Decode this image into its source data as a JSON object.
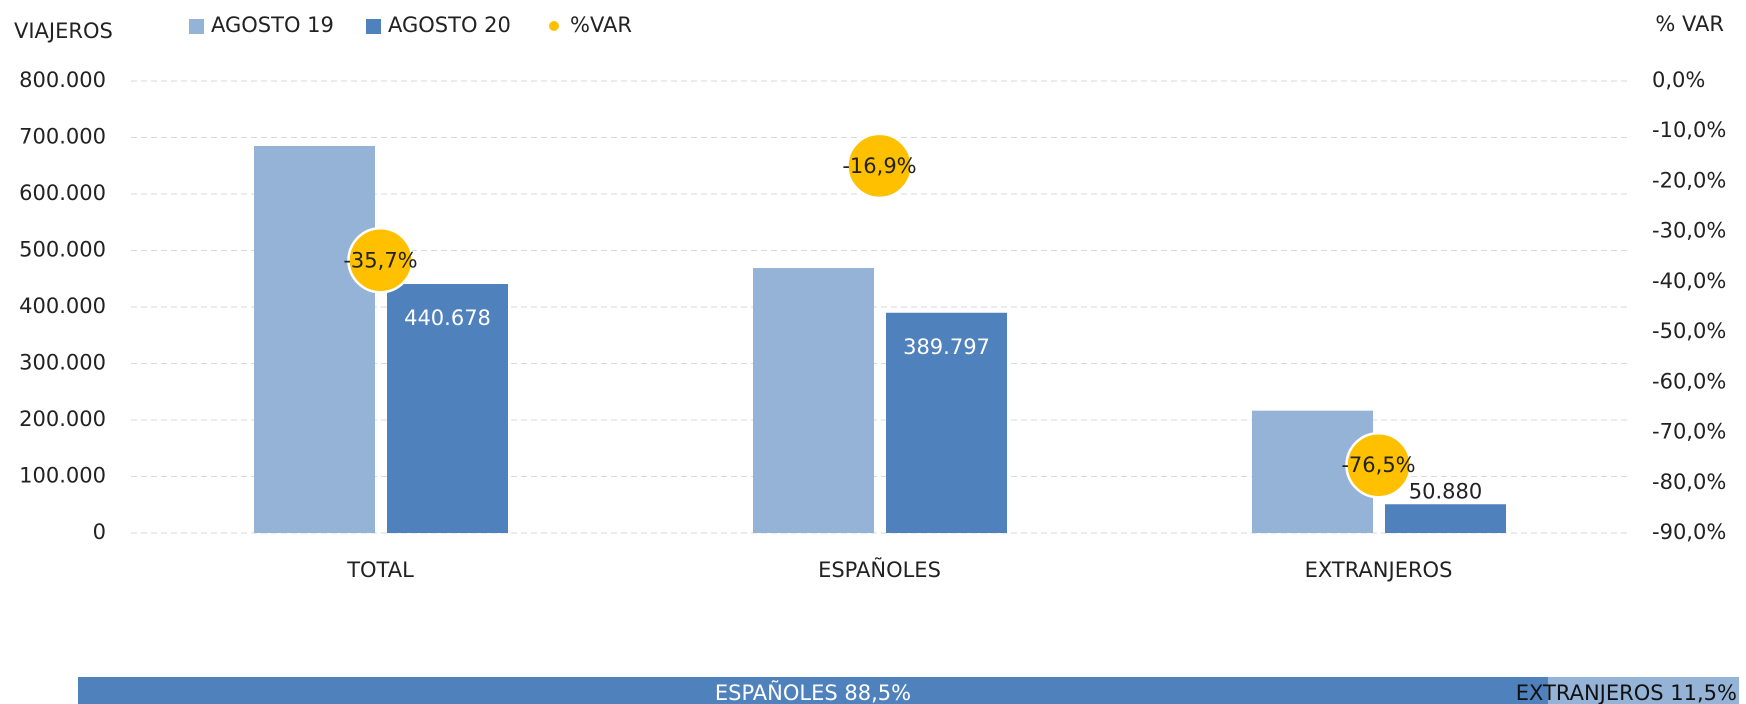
{
  "chart_data": [
    {
      "type": "bar",
      "y_label": "VIAJEROS",
      "y2_label": "% VAR",
      "categories": [
        "TOTAL",
        "ESPAÑOLES",
        "EXTRANJEROS"
      ],
      "series": [
        {
          "name": "AGOSTO 19",
          "color": "#95b3d7",
          "values": [
            685000,
            469000,
            216500
          ]
        },
        {
          "name": "AGOSTO 20",
          "color": "#4f81bd",
          "values": [
            440678,
            389797,
            50880
          ],
          "value_labels": [
            "440.678",
            "389.797",
            "50.880"
          ]
        },
        {
          "name": "%VAR",
          "color": "#ffc000",
          "axis": "y2",
          "values": [
            -35.7,
            -16.9,
            -76.5
          ],
          "value_labels": [
            "-35,7%",
            "-16,9%",
            "-76,5%"
          ]
        }
      ],
      "ylim": [
        0,
        800000
      ],
      "yticks": [
        0,
        {
          "value": 100000,
          "label": "100.000"
        },
        {
          "value": 200000,
          "label": "200.000"
        },
        {
          "value": 300000,
          "label": "300.000"
        },
        {
          "value": 400000,
          "label": "400.000"
        },
        {
          "value": 500000,
          "label": "500.000"
        },
        {
          "value": 600000,
          "label": "600.000"
        },
        {
          "value": 700000,
          "label": "700.000"
        },
        {
          "value": 800000,
          "label": "800.000"
        }
      ],
      "y2lim": [
        -90,
        0
      ],
      "y2ticks": [
        {
          "value": 0,
          "label": "0,0%"
        },
        {
          "value": -10,
          "label": "-10,0%"
        },
        {
          "value": -20,
          "label": "-20,0%"
        },
        {
          "value": -30,
          "label": "-30,0%"
        },
        {
          "value": -40,
          "label": "-40,0%"
        },
        {
          "value": -50,
          "label": "-50,0%"
        },
        {
          "value": -60,
          "label": "-60,0%"
        },
        {
          "value": -70,
          "label": "-70,0%"
        },
        {
          "value": -80,
          "label": "-80,0%"
        },
        {
          "value": -90,
          "label": "-90,0%"
        }
      ],
      "grid": true
    },
    {
      "type": "stacked-share",
      "categories": [
        "ESPAÑOLES",
        "EXTRANJEROS"
      ],
      "values": [
        88.5,
        11.5
      ],
      "value_labels": [
        "88,5%",
        "11,5%"
      ],
      "colors": [
        "#4f81bd",
        "#95b3d7"
      ]
    }
  ]
}
